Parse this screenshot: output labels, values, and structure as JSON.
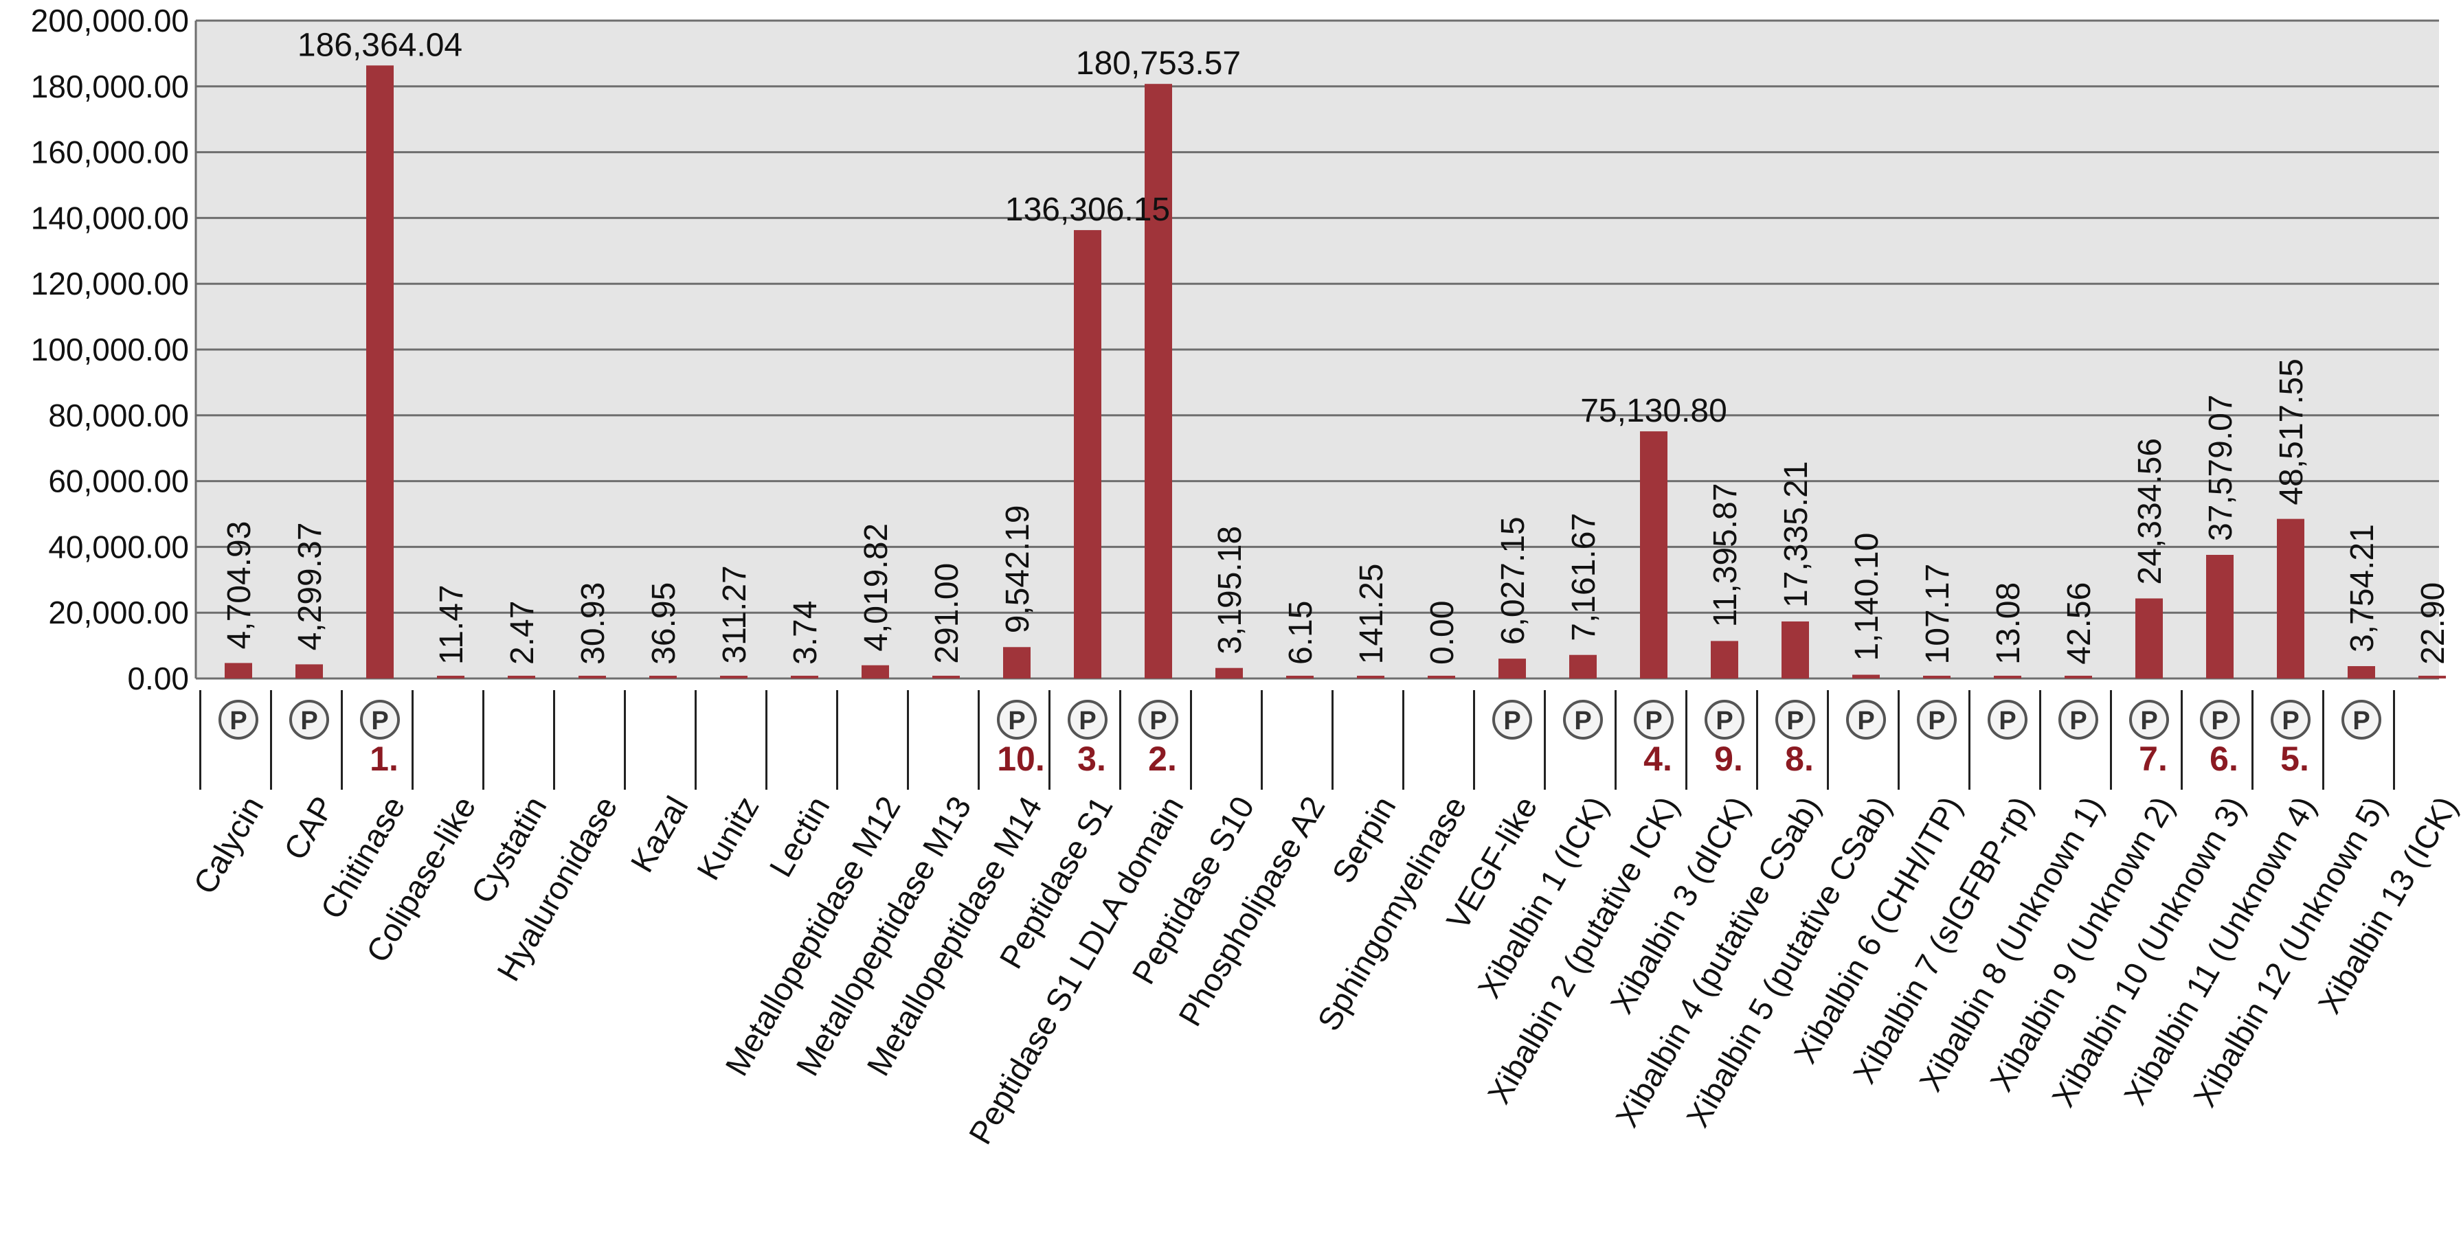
{
  "colors": {
    "bar": "#a0343a",
    "plot_background": "#e5e5e5",
    "gridline": "#6e6e6e",
    "rank": "#8b1a22",
    "protein_icon": "#555555"
  },
  "protein_icon_label": "P",
  "chart_data": {
    "type": "bar",
    "title": "",
    "xlabel": "",
    "ylabel": "",
    "ylim": [
      0,
      200000
    ],
    "yticks": [
      "0.00",
      "20,000.00",
      "40,000.00",
      "60,000.00",
      "80,000.00",
      "100,000.00",
      "120,000.00",
      "140,000.00",
      "160,000.00",
      "180,000.00",
      "200,000.00"
    ],
    "grid": true,
    "legend": "none",
    "categories": [
      "Calycin",
      "CAP",
      "Chitinase",
      "Colipase-like",
      "Cystatin",
      "Hyaluronidase",
      "Kazal",
      "Kunitz",
      "Lectin",
      "Metallopeptidase M12",
      "Metallopeptidase M13",
      "Metallopeptidase M14",
      "Peptidase S1",
      "Peptidase S1 LDLA domain",
      "Peptidase S10",
      "Phospholipase A2",
      "Serpin",
      "Sphingomyelinase",
      "VEGF-like",
      "Xibalbin 1 (ICK)",
      "Xibalbin 2 (putative ICK)",
      "Xibalbin 3 (dICK)",
      "Xibalbin 4 (putative CSab)",
      "Xibalbin 5 (putative CSab)",
      "Xibalbin 6 (CHH/ITP)",
      "Xibalbin 7 (sIGFBP-rp)",
      "Xibalbin 8 (Unknown 1)",
      "Xibalbin 9 (Unknown 2)",
      "Xibalbin 10 (Unknown 3)",
      "Xibalbin 11 (Unknown 4)",
      "Xibalbin 12 (Unknown 5)",
      "Xibalbin 13 (ICK)"
    ],
    "values": [
      4704.93,
      4299.37,
      186364.04,
      11.47,
      2.47,
      30.93,
      36.95,
      311.27,
      3.74,
      4019.82,
      291.0,
      9542.19,
      136306.15,
      180753.57,
      3195.18,
      6.15,
      141.25,
      0.0,
      6027.15,
      7161.67,
      75130.8,
      11395.87,
      17335.21,
      1140.1,
      107.17,
      13.08,
      42.56,
      24334.56,
      37579.07,
      48517.55,
      3754.21,
      22.9
    ],
    "value_labels": [
      "4,704.93",
      "4,299.37",
      "186,364.04",
      "11.47",
      "2.47",
      "30.93",
      "36.95",
      "311.27",
      "3.74",
      "4,019.82",
      "291.00",
      "9,542.19",
      "136,306.15",
      "180,753.57",
      "3,195.18",
      "6.15",
      "141.25",
      "0.00",
      "6,027.15",
      "7,161.67",
      "75,130.80",
      "11,395.87",
      "17,335.21",
      "1,140.10",
      "107.17",
      "13.08",
      "42.56",
      "24,334.56",
      "37,579.07",
      "48,517.55",
      "3,754.21",
      "22.90"
    ],
    "value_label_orientation": [
      "vertical",
      "vertical",
      "horizontal",
      "vertical",
      "vertical",
      "vertical",
      "vertical",
      "vertical",
      "vertical",
      "vertical",
      "vertical",
      "vertical",
      "horizontal",
      "horizontal",
      "vertical",
      "vertical",
      "vertical",
      "vertical",
      "vertical",
      "vertical",
      "horizontal",
      "vertical",
      "vertical",
      "vertical",
      "vertical",
      "vertical",
      "vertical",
      "vertical",
      "vertical",
      "vertical",
      "vertical",
      "vertical"
    ],
    "protein_marker": [
      true,
      true,
      true,
      false,
      false,
      false,
      false,
      false,
      false,
      false,
      false,
      true,
      true,
      true,
      false,
      false,
      false,
      false,
      true,
      true,
      true,
      true,
      true,
      true,
      true,
      true,
      true,
      true,
      true,
      true,
      true,
      false
    ],
    "rank_labels": [
      "",
      "",
      "1.",
      "",
      "",
      "",
      "",
      "",
      "",
      "",
      "",
      "10.",
      "3.",
      "2.",
      "",
      "",
      "",
      "",
      "",
      "",
      "4.",
      "9.",
      "8.",
      "",
      "",
      "",
      "",
      "7.",
      "6.",
      "5.",
      "",
      ""
    ]
  }
}
